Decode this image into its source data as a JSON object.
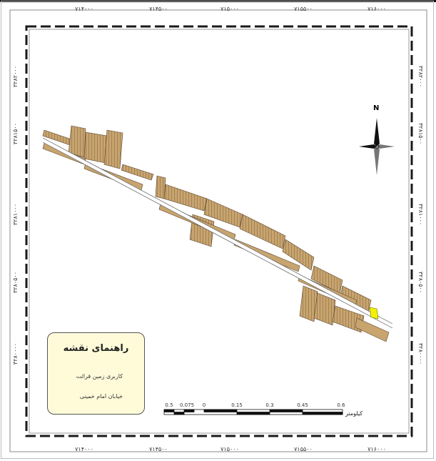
{
  "map": {
    "top_ticks": [
      "۷۱۴۰۰۰",
      "۷۱۴۵۰۰",
      "۷۱۵۰۰۰",
      "۷۱۵۵۰۰",
      "۷۱۶۰۰۰"
    ],
    "bottom_ticks": [
      "۷۱۴۰۰۰",
      "۷۱۴۵۰۰",
      "۷۱۵۰۰۰",
      "۷۱۵۵۰۰",
      "۷۱۶۰۰۰"
    ],
    "left_ticks": [
      "۳۲۸۲۰۰۰",
      "۳۲۸۱۵۰۰",
      "۳۲۸۱۰۰۰",
      "۳۲۸۰۵۰۰",
      "۳۲۸۰۰۰۰"
    ],
    "right_ticks": [
      "۳۲۸۲۰۰۰",
      "۳۲۸۱۵۰۰",
      "۳۲۸۱۰۰۰",
      "۳۲۸۰۵۰۰",
      "۳۲۸۰۰۰۰"
    ],
    "colors": {
      "parcels": "#c8a46e",
      "parcel_outline": "#5a4630",
      "highlight": "#f2f200",
      "legend_bg": "#fffbd9",
      "neatline": "#1a1a1a"
    }
  },
  "north_arrow": {
    "label": "N",
    "icon": "north-arrow-icon"
  },
  "legend": {
    "title": "راهنمای نقشه",
    "items": [
      {
        "label": "کاربری زمین قرائت",
        "color": "#f2f200"
      },
      {
        "label": "خیابان امام خمینی",
        "color": "#c8a46e"
      }
    ]
  },
  "scale_bar": {
    "labels": [
      "0.5",
      "0.075",
      "0",
      "0.15",
      "0.3",
      "0.45",
      "0.6"
    ],
    "unit": "کیلومتر"
  }
}
